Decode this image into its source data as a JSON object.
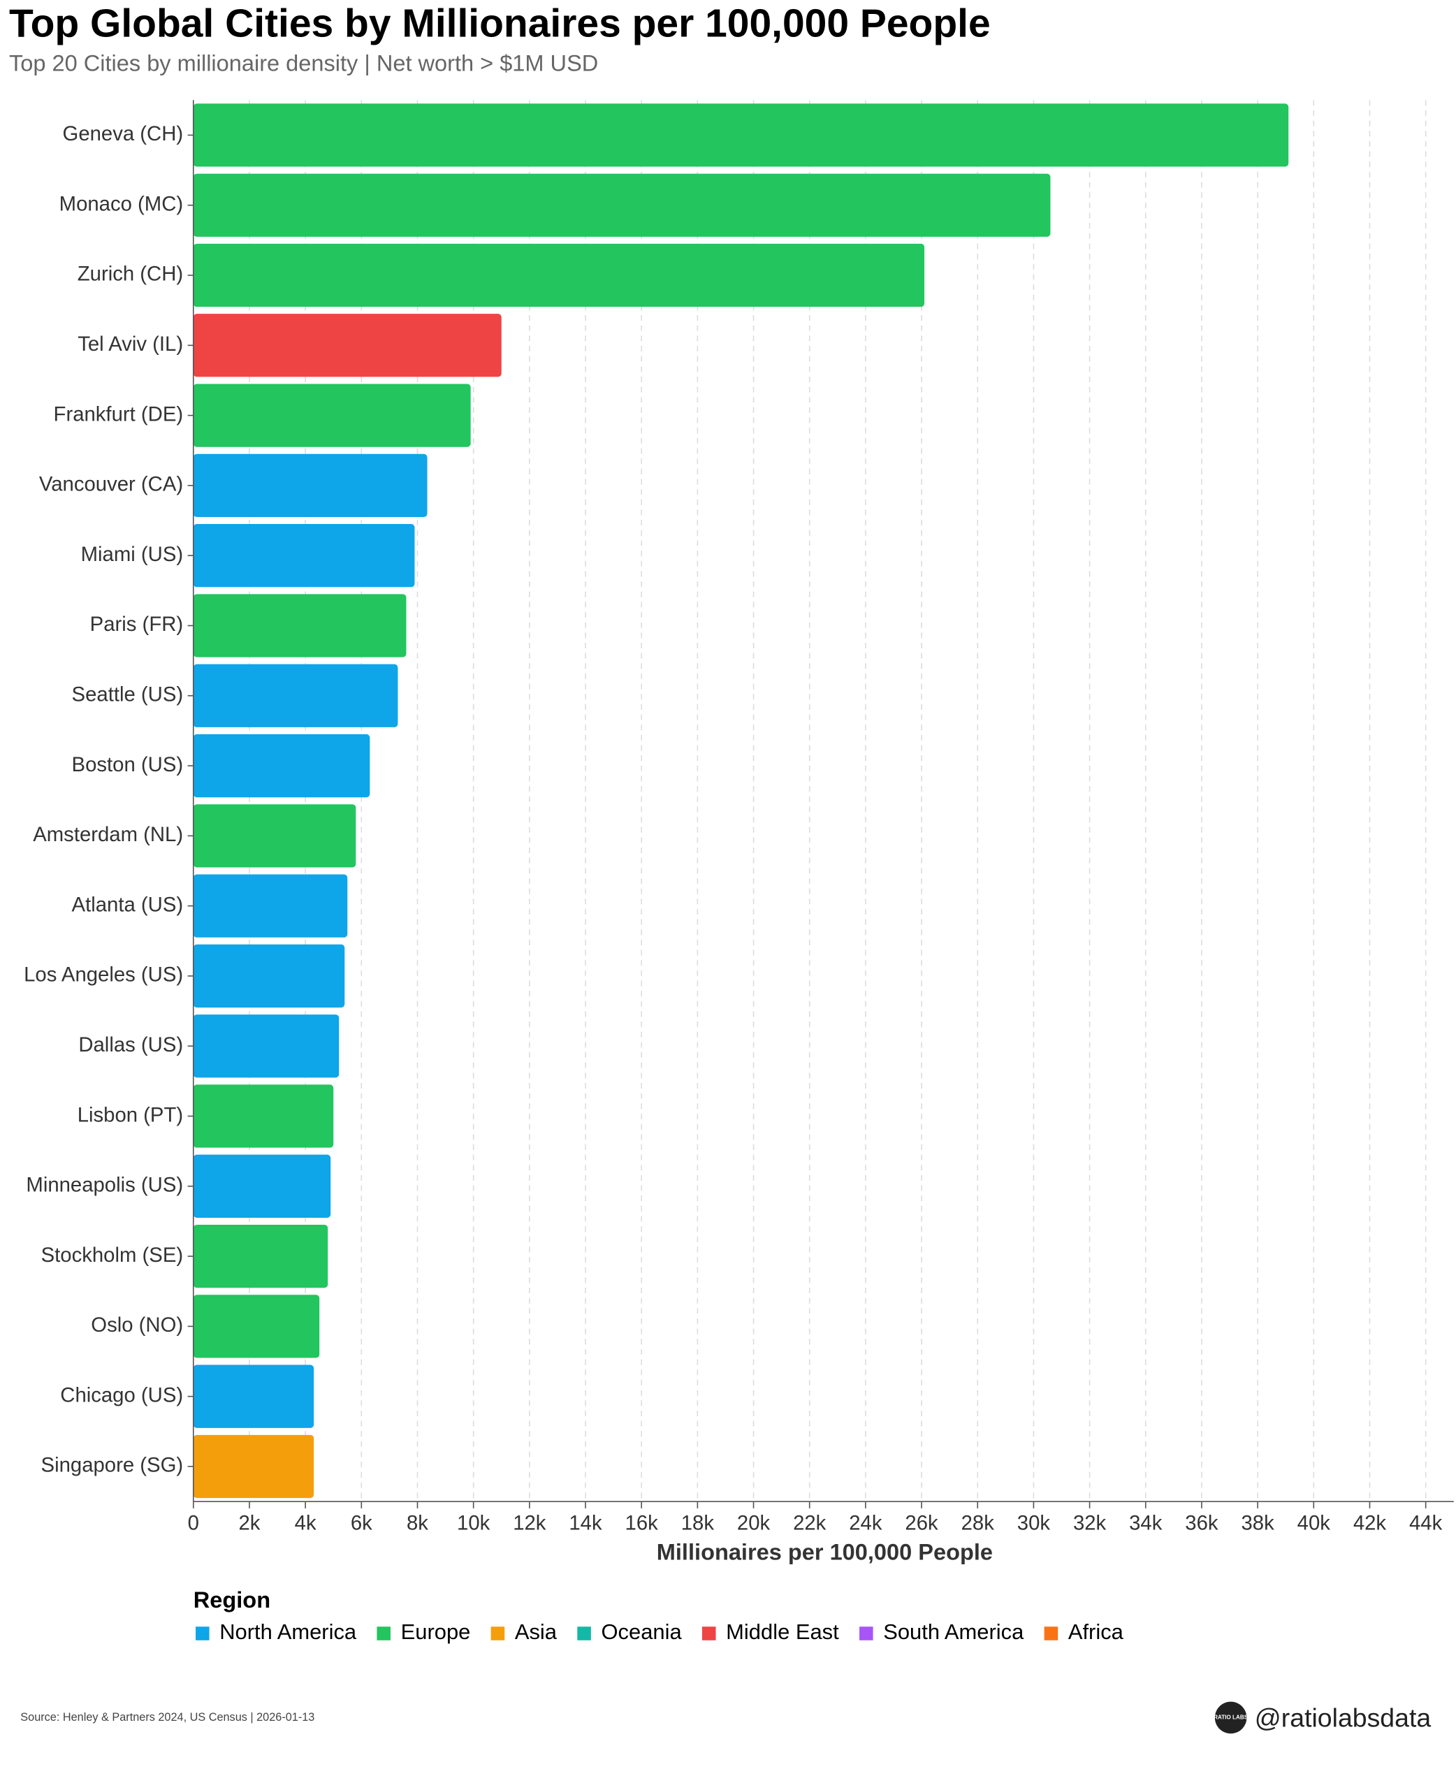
{
  "chart_data": {
    "type": "hbar",
    "title": "Top Global Cities by Millionaires per 100,000 People",
    "subtitle": "Top 20 Cities by millionaire density | Net worth > $1M USD",
    "x_label": "Millionaires per 100,000 People",
    "legend_title": "Region",
    "source": "Source: Henley & Partners 2024, US Census | 2026-01-13",
    "handle": "@ratiolabsdata",
    "logo_text": "RATIO LABS",
    "categories": [
      "Geneva (CH)",
      "Monaco (MC)",
      "Zurich (CH)",
      "Tel Aviv (IL)",
      "Frankfurt (DE)",
      "Vancouver (CA)",
      "Miami (US)",
      "Paris (FR)",
      "Seattle (US)",
      "Boston (US)",
      "Amsterdam (NL)",
      "Atlanta (US)",
      "Los Angeles (US)",
      "Dallas (US)",
      "Lisbon (PT)",
      "Minneapolis (US)",
      "Stockholm (SE)",
      "Oslo (NO)",
      "Chicago (US)",
      "Singapore (SG)"
    ],
    "series": [
      {
        "name": "North America",
        "color": "#0ea5e9",
        "values": [
          null,
          null,
          null,
          null,
          null,
          8350,
          7900,
          null,
          7300,
          6300,
          null,
          5500,
          5400,
          5200,
          null,
          4900,
          null,
          null,
          4300,
          null
        ]
      },
      {
        "name": "Europe",
        "color": "#22c55e",
        "values": [
          39100,
          30600,
          26100,
          null,
          9900,
          null,
          null,
          7600,
          null,
          null,
          5800,
          null,
          null,
          null,
          5000,
          null,
          4800,
          4500,
          null,
          null
        ]
      },
      {
        "name": "Asia",
        "color": "#f59e0b",
        "values": [
          null,
          null,
          null,
          null,
          null,
          null,
          null,
          null,
          null,
          null,
          null,
          null,
          null,
          null,
          null,
          null,
          null,
          null,
          null,
          4300
        ]
      },
      {
        "name": "Oceania",
        "color": "#14b8a6",
        "values": [
          null,
          null,
          null,
          null,
          null,
          null,
          null,
          null,
          null,
          null,
          null,
          null,
          null,
          null,
          null,
          null,
          null,
          null,
          null,
          null
        ]
      },
      {
        "name": "Middle East",
        "color": "#ef4444",
        "values": [
          null,
          null,
          null,
          11000,
          null,
          null,
          null,
          null,
          null,
          null,
          null,
          null,
          null,
          null,
          null,
          null,
          null,
          null,
          null,
          null
        ]
      },
      {
        "name": "South America",
        "color": "#a855f7",
        "values": [
          null,
          null,
          null,
          null,
          null,
          null,
          null,
          null,
          null,
          null,
          null,
          null,
          null,
          null,
          null,
          null,
          null,
          null,
          null,
          null
        ]
      },
      {
        "name": "Africa",
        "color": "#f97316",
        "values": [
          null,
          null,
          null,
          null,
          null,
          null,
          null,
          null,
          null,
          null,
          null,
          null,
          null,
          null,
          null,
          null,
          null,
          null,
          null,
          null
        ]
      }
    ],
    "xlim": [
      0,
      45000
    ],
    "xticks": [
      0,
      {
        "value": 2000,
        "label": "2k"
      },
      {
        "value": 4000,
        "label": "4k"
      },
      {
        "value": 6000,
        "label": "6k"
      },
      {
        "value": 8000,
        "label": "8k"
      },
      {
        "value": 10000,
        "label": "10k"
      },
      {
        "value": 12000,
        "label": "12k"
      },
      {
        "value": 14000,
        "label": "14k"
      },
      {
        "value": 16000,
        "label": "16k"
      },
      {
        "value": 18000,
        "label": "18k"
      },
      {
        "value": 20000,
        "label": "20k"
      },
      {
        "value": 22000,
        "label": "22k"
      },
      {
        "value": 24000,
        "label": "24k"
      },
      {
        "value": 26000,
        "label": "26k"
      },
      {
        "value": 28000,
        "label": "28k"
      },
      {
        "value": 30000,
        "label": "30k"
      },
      {
        "value": 32000,
        "label": "32k"
      },
      {
        "value": 34000,
        "label": "34k"
      },
      {
        "value": 36000,
        "label": "36k"
      },
      {
        "value": 38000,
        "label": "38k"
      },
      {
        "value": 40000,
        "label": "40k"
      },
      {
        "value": 42000,
        "label": "42k"
      },
      {
        "value": 44000,
        "label": "44k"
      }
    ],
    "grid": true
  }
}
